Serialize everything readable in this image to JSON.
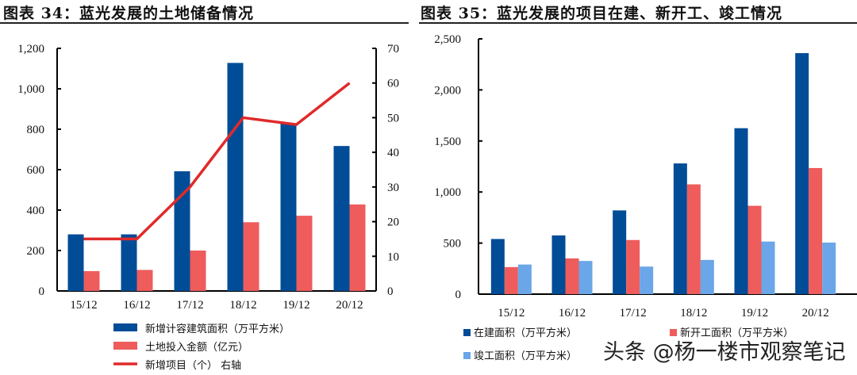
{
  "chart_data": [
    {
      "type": "bar",
      "title": "图表 34：蓝光发展的土地储备情况",
      "categories": [
        "15/12",
        "16/12",
        "17/12",
        "18/12",
        "19/12",
        "20/12"
      ],
      "ylim": [
        0,
        1200
      ],
      "yticks": [
        "0",
        "200",
        "400",
        "600",
        "800",
        "1,000",
        "1,200"
      ],
      "y2lim": [
        0,
        70
      ],
      "y2ticks": [
        "0",
        "10",
        "20",
        "30",
        "40",
        "50",
        "60",
        "70"
      ],
      "series": [
        {
          "name": "新增计容建筑面积（万平方米）",
          "type": "bar",
          "axis": "left",
          "color": "#004C97",
          "values": [
            280,
            280,
            592,
            1128,
            827,
            717
          ]
        },
        {
          "name": "土地投入金额（亿元）",
          "type": "bar",
          "axis": "left",
          "color": "#EE5C5C",
          "values": [
            98,
            104,
            200,
            340,
            372,
            428
          ]
        },
        {
          "name": "新增项目（个） 右轴",
          "type": "line",
          "axis": "right",
          "color": "#E02A2A",
          "values": [
            15,
            15,
            30,
            50,
            48,
            60
          ]
        }
      ],
      "legend": "bottom"
    },
    {
      "type": "bar",
      "title": "图表 35：蓝光发展的项目在建、新开工、竣工情况",
      "categories": [
        "15/12",
        "16/12",
        "17/12",
        "18/12",
        "19/12",
        "20/12"
      ],
      "ylim": [
        0,
        2500
      ],
      "yticks": [
        "0",
        "500",
        "1,000",
        "1,500",
        "2,000",
        "2,500"
      ],
      "series": [
        {
          "name": "在建面积（万平方米）",
          "color": "#004C97",
          "values": [
            540,
            575,
            820,
            1280,
            1625,
            2360
          ]
        },
        {
          "name": "新开工面积（万平方米）",
          "color": "#EE5C5C",
          "values": [
            265,
            350,
            530,
            1075,
            865,
            1235
          ]
        },
        {
          "name": "竣工面积（万平方米）",
          "color": "#6AA6E8",
          "values": [
            290,
            325,
            270,
            335,
            515,
            505
          ]
        }
      ],
      "legend": "bottom"
    }
  ],
  "watermark": "头条 @杨一楼市观察笔记"
}
